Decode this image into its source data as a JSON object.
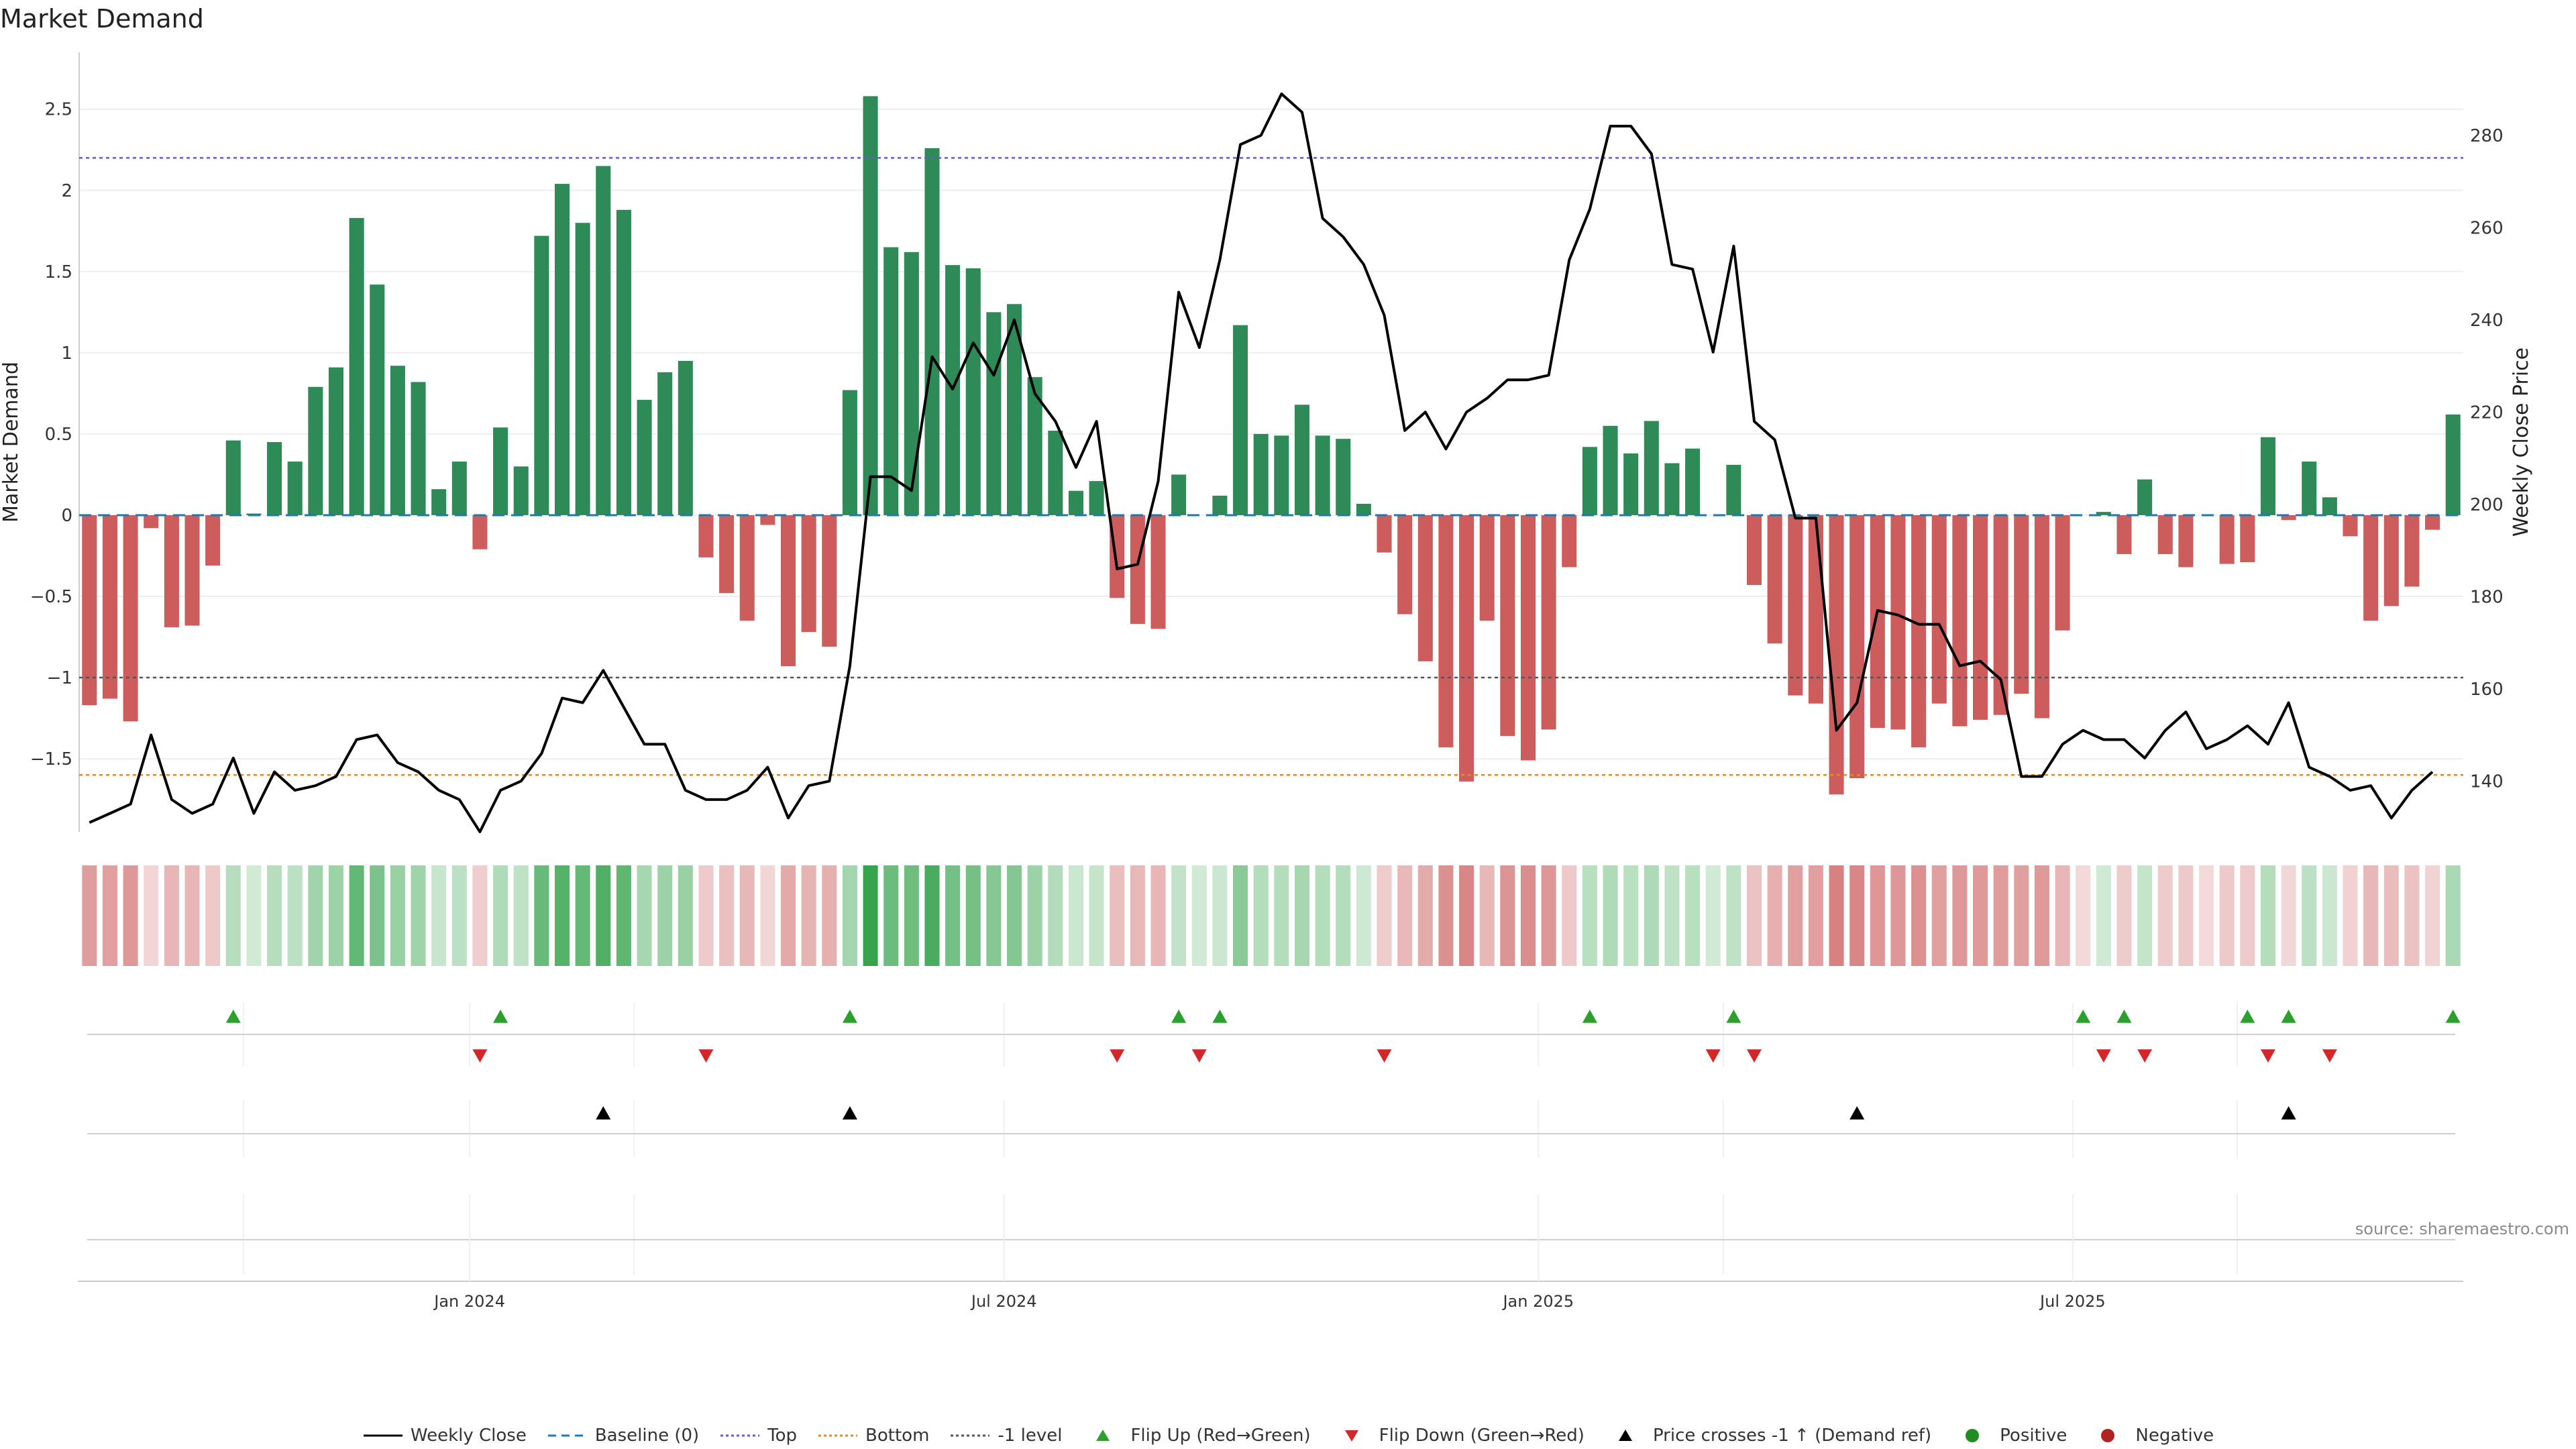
{
  "title": "Market Demand",
  "source": "source: sharemaestro.com",
  "chart_data": {
    "type": "bar",
    "x_tick_labels": [
      "Jan 2024",
      "Jul 2024",
      "Jan 2025",
      "Jul 2025"
    ],
    "weeks_total": 116,
    "x_tick_week_index": [
      19,
      45,
      71,
      97
    ],
    "ylabel": "Market Demand",
    "ylim": [
      -1.95,
      2.85
    ],
    "yticks": [
      2.5,
      2,
      1.5,
      1,
      0.5,
      0,
      -0.5,
      -1,
      -1.5
    ],
    "ytick_labels": [
      "2.5",
      "2",
      "1.5",
      "1",
      "0.5",
      "0",
      "−0.5",
      "−1",
      "−1.5"
    ],
    "y2label": "Weekly Close Price",
    "y2lim": [
      129,
      298
    ],
    "y2ticks": [
      140,
      160,
      180,
      200,
      220,
      240,
      260,
      280
    ],
    "reference_levels": {
      "top": 2.2,
      "bottom": -1.6,
      "minus_one": -1.0,
      "baseline": 0
    },
    "demand": [
      -1.17,
      -1.13,
      -1.27,
      -0.08,
      -0.69,
      -0.68,
      -0.31,
      0.46,
      0.01,
      0.45,
      0.33,
      0.79,
      0.91,
      1.83,
      1.42,
      0.92,
      0.82,
      0.16,
      0.33,
      -0.21,
      0.54,
      0.3,
      1.72,
      2.04,
      1.8,
      2.15,
      1.88,
      0.71,
      0.88,
      0.95,
      -0.26,
      -0.48,
      -0.65,
      -0.06,
      -0.93,
      -0.72,
      -0.81,
      0.77,
      2.58,
      1.65,
      1.62,
      2.26,
      1.54,
      1.52,
      1.25,
      1.3,
      0.85,
      0.52,
      0.15,
      0.21,
      -0.51,
      -0.67,
      -0.7,
      0.25,
      0.0,
      0.12,
      1.17,
      0.5,
      0.49,
      0.68,
      0.49,
      0.47,
      0.07,
      -0.23,
      -0.61,
      -0.9,
      -1.43,
      -1.64,
      -0.65,
      -1.36,
      -1.51,
      -1.32,
      -0.32,
      0.42,
      0.55,
      0.38,
      0.58,
      0.32,
      0.41,
      0.0,
      0.31,
      -0.43,
      -0.79,
      -1.11,
      -1.16,
      -1.72,
      -1.62,
      -1.31,
      -1.32,
      -1.43,
      -1.16,
      -1.3,
      -1.26,
      -1.23,
      -1.1,
      -1.25,
      -0.71,
      0.0,
      0.02,
      -0.24,
      0.22,
      -0.24,
      -0.32,
      0.0,
      -0.3,
      -0.29,
      0.48,
      -0.03,
      0.33,
      0.11,
      -0.13,
      -0.65,
      -0.56,
      -0.44,
      -0.09,
      0.62
    ],
    "weekly_close": [
      131,
      133,
      135,
      150,
      136,
      133,
      135,
      145,
      133,
      142,
      138,
      139,
      141,
      149,
      150,
      144,
      142,
      138,
      136,
      129,
      138,
      140,
      146,
      158,
      157,
      164,
      156,
      148,
      148,
      138,
      136,
      136,
      138,
      143,
      132,
      139,
      140,
      165,
      206,
      206,
      203,
      232,
      225,
      235,
      228,
      240,
      224,
      218,
      208,
      218,
      186,
      187,
      205,
      246,
      234,
      253,
      278,
      280,
      289,
      285,
      262,
      258,
      252,
      241,
      216,
      220,
      212,
      220,
      223,
      227,
      227,
      228,
      253,
      264,
      282,
      282,
      276,
      252,
      251,
      233,
      256,
      218,
      214,
      197,
      197,
      151,
      157,
      177,
      176,
      174,
      174,
      165,
      166,
      162,
      141,
      141,
      148,
      151,
      149,
      149,
      145,
      151,
      155,
      147,
      149,
      152,
      148,
      157,
      143,
      141,
      138,
      139,
      132,
      138,
      142
    ],
    "series": [
      {
        "name": "Weekly Close",
        "kind": "line",
        "color": "#000000"
      },
      {
        "name": "Positive",
        "kind": "bar",
        "color": "#2e8b57"
      },
      {
        "name": "Negative",
        "kind": "bar",
        "color": "#cd5c5c"
      }
    ],
    "flip_up_weeks": [
      7,
      20,
      37,
      53,
      55,
      73,
      80,
      97,
      99,
      105,
      107,
      115
    ],
    "flip_down_weeks": [
      19,
      30,
      50,
      54,
      63,
      79,
      81,
      98,
      100,
      106,
      109
    ],
    "price_cross_weeks": [
      25,
      37,
      86,
      107
    ],
    "legend_position": "bottom-center"
  },
  "legend": [
    {
      "label": "Weekly Close",
      "style": "line",
      "color": "#000000"
    },
    {
      "label": "Baseline (0)",
      "style": "dashed",
      "color": "#1f77b4"
    },
    {
      "label": "Top",
      "style": "dotted",
      "color": "#6a5acd"
    },
    {
      "label": "Bottom",
      "style": "dotted",
      "color": "#e08a2e"
    },
    {
      "label": "-1 level",
      "style": "dotted",
      "color": "#555555"
    },
    {
      "label": "Flip Up (Red→Green)",
      "style": "tri-up",
      "color": "#2ca02c"
    },
    {
      "label": "Flip Down (Green→Red)",
      "style": "tri-down",
      "color": "#d62728"
    },
    {
      "label": "Price crosses -1 ↑ (Demand ref)",
      "style": "tri-up",
      "color": "#000000"
    },
    {
      "label": "Positive",
      "style": "dot",
      "color": "#228b22"
    },
    {
      "label": "Negative",
      "style": "dot",
      "color": "#b22222"
    }
  ]
}
